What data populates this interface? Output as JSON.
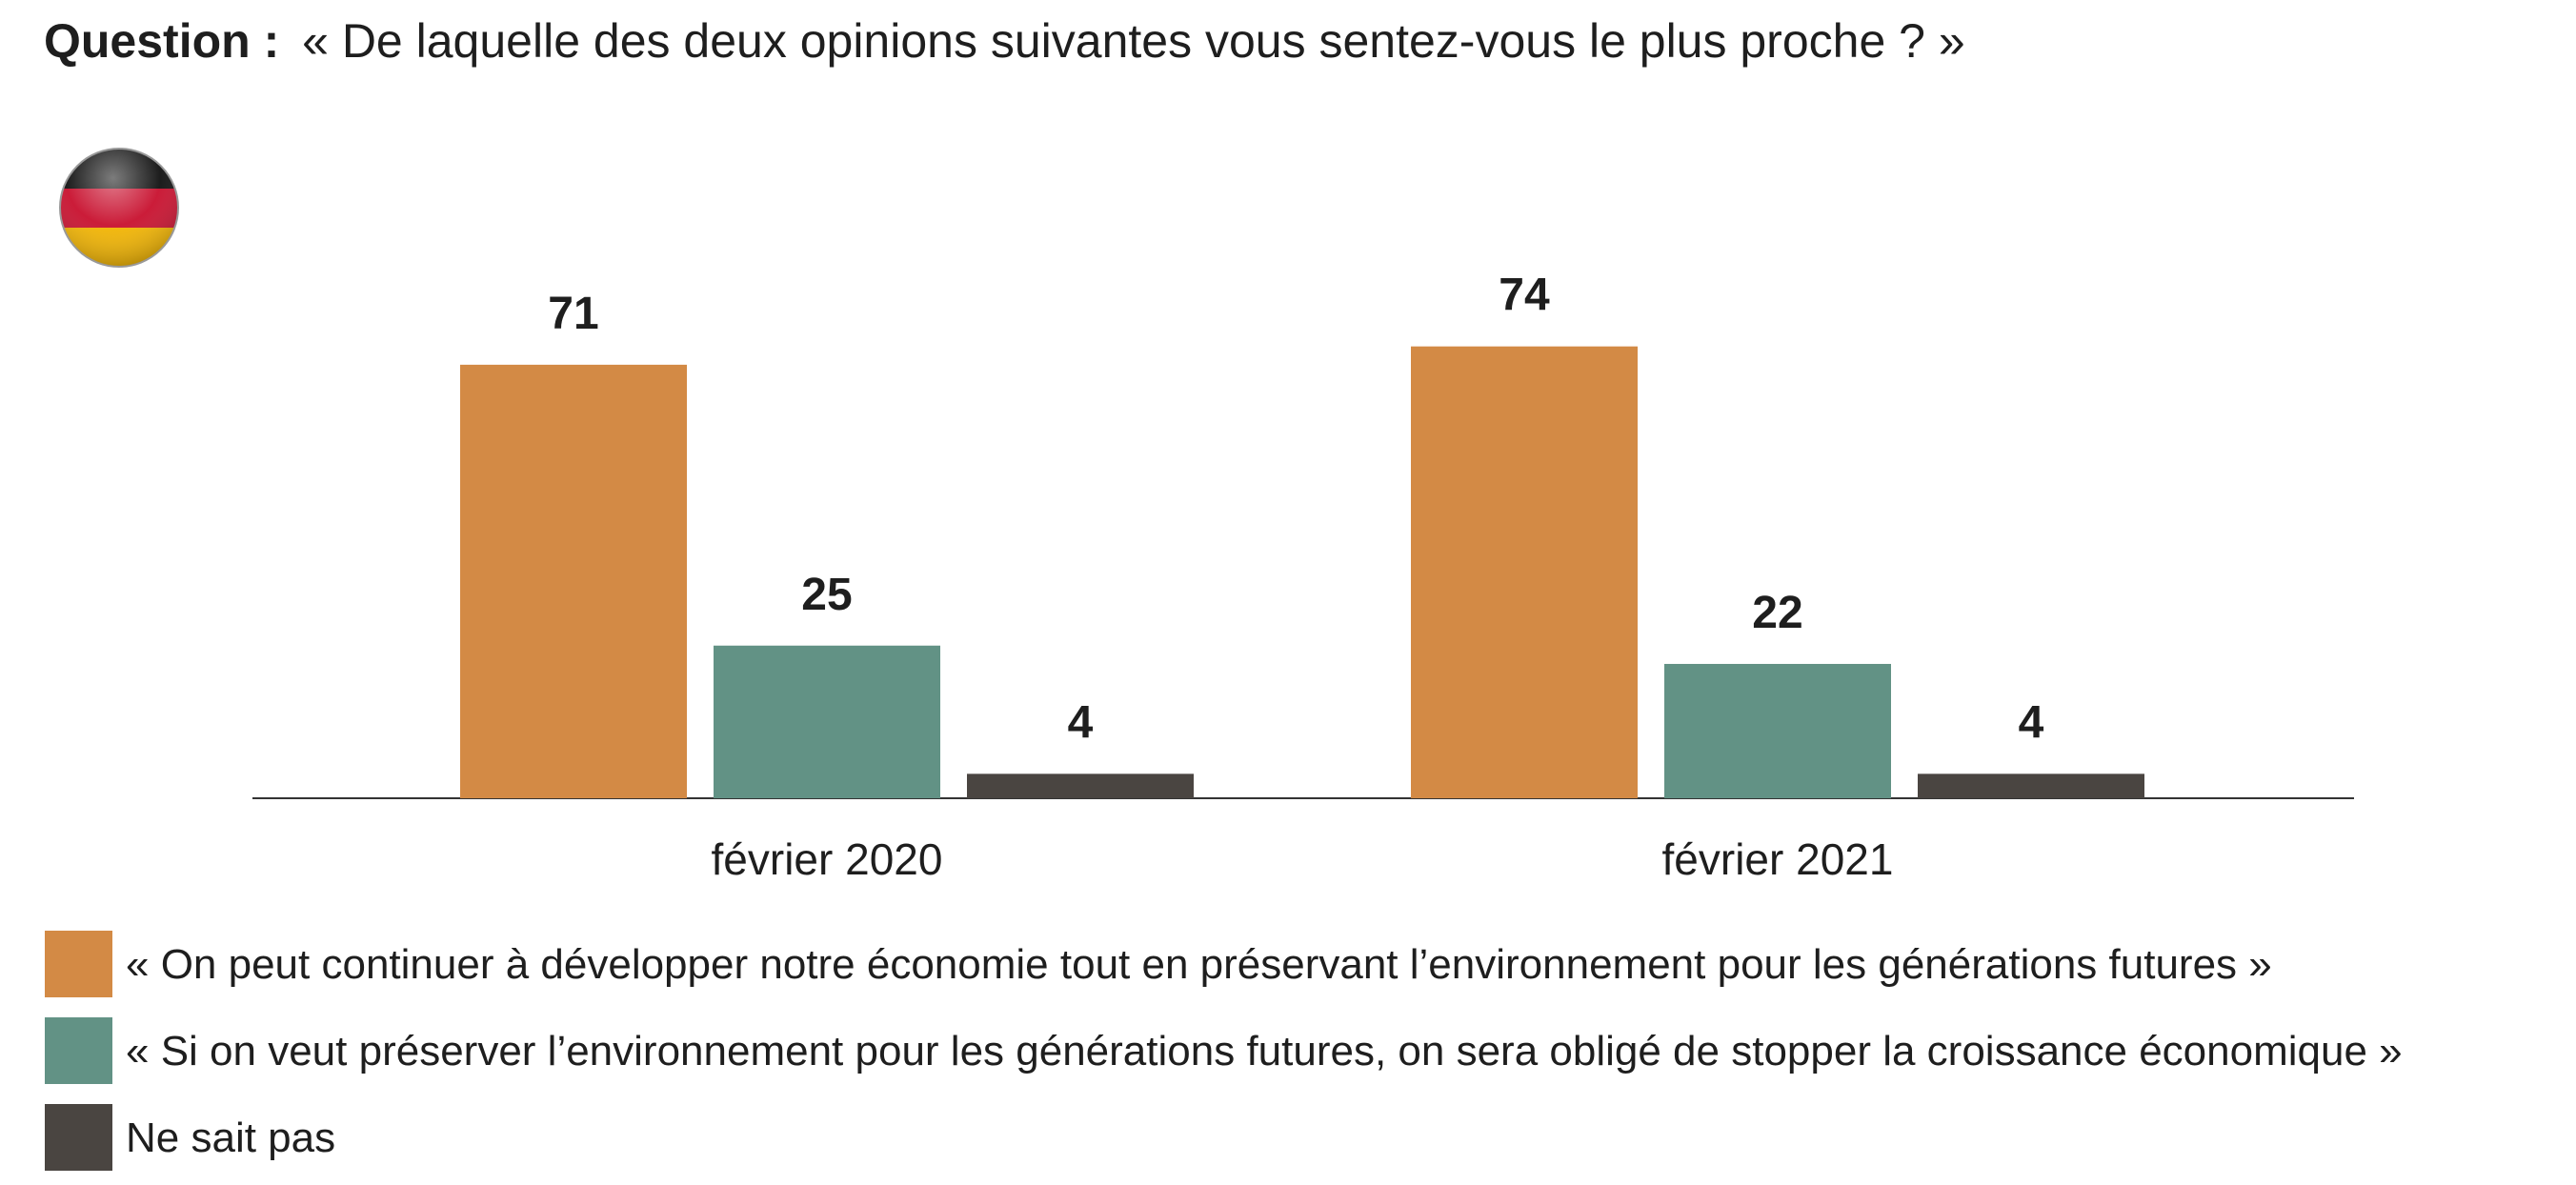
{
  "chart_data": {
    "type": "bar",
    "title_label": "Question :",
    "title": "« De laquelle des deux opinions suivantes vous sentez-vous le plus proche ? »",
    "categories": [
      "février 2020",
      "février 2021"
    ],
    "series": [
      {
        "name": "« On peut continuer à développer notre économie tout en préservant l’environnement pour les générations futures »",
        "color": "#d38a45",
        "values": [
          71,
          74
        ]
      },
      {
        "name": "« Si on veut préserver l’environnement pour les générations futures, on sera obligé de stopper la croissance économique »",
        "color": "#629285",
        "values": [
          25,
          22
        ]
      },
      {
        "name": "Ne sait pas",
        "color": "#4a4541",
        "values": [
          4,
          4
        ]
      }
    ],
    "ylim": [
      0,
      100
    ]
  }
}
